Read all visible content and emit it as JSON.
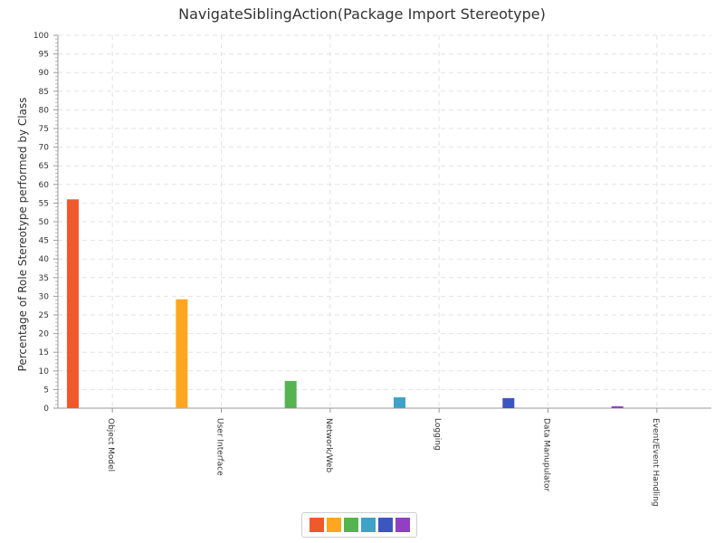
{
  "chart_data": {
    "type": "bar",
    "title": "NavigateSiblingAction(Package Import Stereotype)",
    "xlabel": "",
    "ylabel": "Percentage of Role Stereotype performed by Class",
    "ylim": [
      0,
      100
    ],
    "y_ticks": [
      0,
      5,
      10,
      15,
      20,
      25,
      30,
      35,
      40,
      45,
      50,
      55,
      60,
      65,
      70,
      75,
      80,
      85,
      90,
      95,
      100
    ],
    "categories": [
      "Object Model",
      "User Interface",
      "Network/Web",
      "Logging",
      "Data Manupulator",
      "Event/Event Handling"
    ],
    "values": [
      56,
      29.2,
      7.3,
      2.9,
      2.7,
      0.5
    ],
    "colors": [
      "#f05a2a",
      "#ffa620",
      "#55b450",
      "#3fa3c8",
      "#3c56c0",
      "#9040c0"
    ],
    "grid": true,
    "legend": "bottom-center"
  }
}
